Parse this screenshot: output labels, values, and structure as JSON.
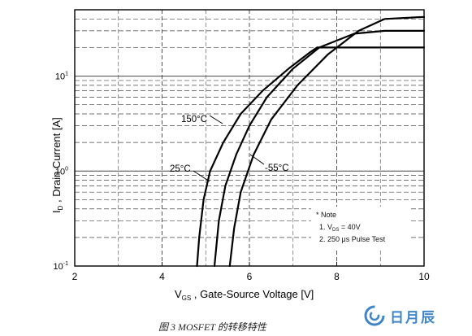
{
  "chart_data": {
    "type": "line",
    "xlabel": "V_GS , Gate-Source Voltage [V]",
    "ylabel": "I_D , Drain Current [A]",
    "xlim": [
      2,
      10
    ],
    "ylim": [
      0.1,
      50
    ],
    "yscale": "log",
    "xticks": [
      2,
      4,
      6,
      8,
      10
    ],
    "xtick_labels": [
      "2",
      "4",
      "6",
      "8",
      "10"
    ],
    "yticks": [
      0.1,
      1,
      10
    ],
    "ytick_labels": [
      {
        "base": "10",
        "exp": "-1"
      },
      {
        "base": "10",
        "exp": "0"
      },
      {
        "base": "10",
        "exp": "1"
      }
    ],
    "grid": true,
    "series": [
      {
        "name": "150°C",
        "x": [
          4.8,
          4.85,
          4.95,
          5.1,
          5.4,
          5.8,
          6.3,
          6.9,
          7.4,
          7.55,
          8.2,
          10.0
        ],
        "y": [
          0.1,
          0.2,
          0.5,
          1.0,
          2.0,
          4.0,
          7.0,
          12.0,
          18.0,
          20.0,
          20.0,
          20.0
        ]
      },
      {
        "name": "25°C",
        "x": [
          5.2,
          5.3,
          5.45,
          5.7,
          6.0,
          6.4,
          7.0,
          7.6,
          8.4,
          9.1,
          10.0
        ],
        "y": [
          0.1,
          0.3,
          0.7,
          1.5,
          3.0,
          6.0,
          12.0,
          20.0,
          28.0,
          30.0,
          30.0
        ]
      },
      {
        "name": "-55°C",
        "x": [
          5.55,
          5.65,
          5.8,
          6.1,
          6.5,
          7.1,
          7.8,
          8.5,
          9.1,
          10.0
        ],
        "y": [
          0.1,
          0.25,
          0.6,
          1.5,
          3.5,
          8.0,
          17.0,
          30.0,
          40.0,
          42.0
        ]
      }
    ],
    "note": [
      "* Note",
      "1. V_DS = 40V",
      "2. 250 μs Pulse Test"
    ]
  },
  "labels": {
    "ylabel_I": "I",
    "ylabel_D": "D",
    "ylabel_rest": " , Drain Current  [A]",
    "xlabel_V": "V",
    "xlabel_GS": "GS",
    "xlabel_rest": " , Gate-Source Voltage  [V]",
    "curve_150": "150°C",
    "curve_25": "25°C",
    "curve_m55": "-55°C",
    "note_title": "* Note",
    "note_1_prefix": "1. V",
    "note_1_sub": "DS",
    "note_1_suffix": " = 40V",
    "note_2": "2. 250 μs Pulse Test"
  },
  "caption": "图 3    MOSFET 的转移特性",
  "logo_text": "日月辰",
  "colors": {
    "curve": "#000000",
    "grid": "#444444",
    "logo": "#3f86c9"
  },
  "icons": {
    "logo": "spiral-logo-icon"
  }
}
